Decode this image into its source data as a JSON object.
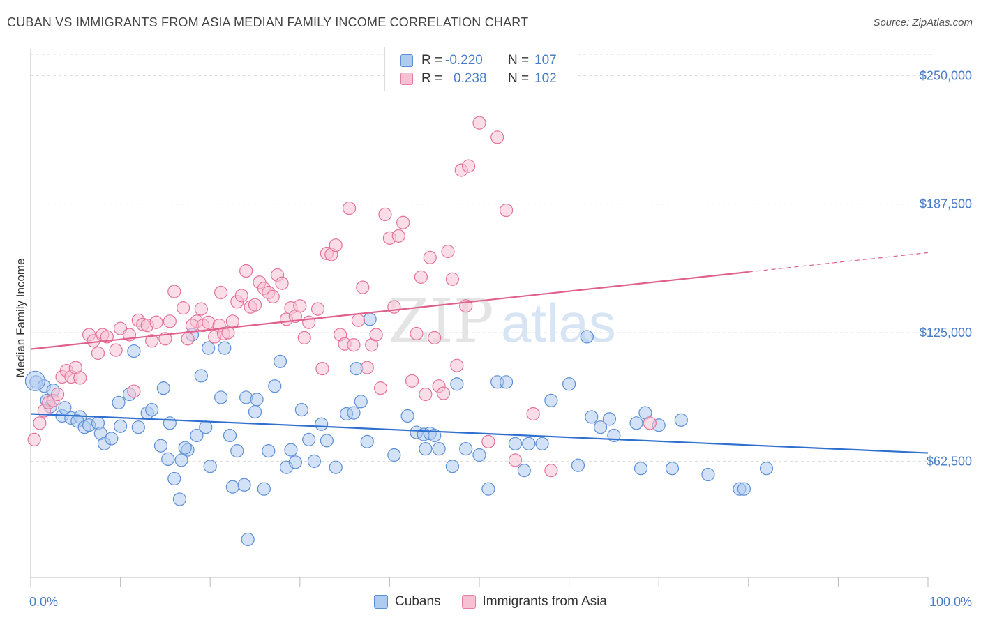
{
  "title": "CUBAN VS IMMIGRANTS FROM ASIA MEDIAN FAMILY INCOME CORRELATION CHART",
  "source": "Source: ZipAtlas.com",
  "watermark": {
    "zip": "ZIP",
    "atlas": "atlas"
  },
  "legend": {
    "rows": [
      {
        "r_label": "R =",
        "r_value": "-0.220",
        "n_label": "N =",
        "n_value": "107",
        "fill": "#aecbf0",
        "stroke": "#5b8fd6"
      },
      {
        "r_label": "R =",
        "r_value": "0.238",
        "n_label": "N =",
        "n_value": "102",
        "fill": "#f8c1d3",
        "stroke": "#e47fa2"
      }
    ]
  },
  "bottom_legend": [
    {
      "label": "Cubans",
      "fill": "#aecbf0",
      "stroke": "#5b8fd6"
    },
    {
      "label": "Immigrants from Asia",
      "fill": "#f8c1d3",
      "stroke": "#e47fa2"
    }
  ],
  "chart_data": {
    "type": "scatter",
    "title": "CUBAN VS IMMIGRANTS FROM ASIA MEDIAN FAMILY INCOME CORRELATION CHART",
    "xlabel": "",
    "ylabel": "Median Family Income",
    "xlim": [
      0,
      100
    ],
    "ylim": [
      6000,
      263000
    ],
    "x_tick_labels": [
      "0.0%",
      "100.0%"
    ],
    "y_ticks": [
      62500,
      125000,
      187500,
      250000
    ],
    "y_tick_labels": [
      "$62,500",
      "$125,000",
      "$187,500",
      "$250,000"
    ],
    "grid": true,
    "legend_position": "top-center",
    "series": [
      {
        "name": "Cubans",
        "color": "#5b8fd6",
        "fill": "#aecbf0",
        "trend": {
          "x0": 0,
          "y0": 85500,
          "x1": 100,
          "y1": 66500
        },
        "points": [
          [
            0.6,
            101000
          ],
          [
            1.5,
            99000
          ],
          [
            2.5,
            97000
          ],
          [
            1.8,
            92000
          ],
          [
            2.2,
            89000
          ],
          [
            3.5,
            84500
          ],
          [
            4.5,
            83500
          ],
          [
            3.8,
            88500
          ],
          [
            5.5,
            84000
          ],
          [
            5.2,
            82000
          ],
          [
            6.0,
            79000
          ],
          [
            6.5,
            80000
          ],
          [
            7.5,
            81000
          ],
          [
            7.8,
            76000
          ],
          [
            8.2,
            71000
          ],
          [
            9.0,
            73500
          ],
          [
            9.8,
            91000
          ],
          [
            10.0,
            79500
          ],
          [
            11.0,
            95000
          ],
          [
            11.5,
            116000
          ],
          [
            12.0,
            79000
          ],
          [
            13.0,
            86000
          ],
          [
            13.5,
            87500
          ],
          [
            14.5,
            70000
          ],
          [
            14.8,
            98000
          ],
          [
            15.5,
            81000
          ],
          [
            15.3,
            63500
          ],
          [
            16.0,
            54000
          ],
          [
            16.8,
            63000
          ],
          [
            16.6,
            44000
          ],
          [
            17.5,
            68000
          ],
          [
            17.2,
            69000
          ],
          [
            18.0,
            124000
          ],
          [
            18.5,
            75000
          ],
          [
            19.0,
            104000
          ],
          [
            19.5,
            79000
          ],
          [
            19.8,
            117500
          ],
          [
            20.0,
            60000
          ],
          [
            21.2,
            93500
          ],
          [
            21.6,
            117500
          ],
          [
            22.2,
            75000
          ],
          [
            22.5,
            50000
          ],
          [
            23.0,
            67500
          ],
          [
            23.8,
            51000
          ],
          [
            24.0,
            93500
          ],
          [
            24.2,
            24500
          ],
          [
            25.0,
            86500
          ],
          [
            25.2,
            92500
          ],
          [
            26.0,
            49000
          ],
          [
            26.5,
            67500
          ],
          [
            27.2,
            99000
          ],
          [
            27.8,
            111000
          ],
          [
            28.5,
            59500
          ],
          [
            29.0,
            68000
          ],
          [
            29.5,
            62000
          ],
          [
            30.2,
            87500
          ],
          [
            31.0,
            73000
          ],
          [
            31.6,
            62500
          ],
          [
            32.4,
            80500
          ],
          [
            33.0,
            72500
          ],
          [
            34.0,
            59500
          ],
          [
            35.2,
            85500
          ],
          [
            36.0,
            86000
          ],
          [
            36.3,
            107500
          ],
          [
            36.8,
            91500
          ],
          [
            37.5,
            72000
          ],
          [
            37.8,
            131500
          ],
          [
            40.5,
            65500
          ],
          [
            42.0,
            84500
          ],
          [
            43.0,
            76500
          ],
          [
            43.8,
            75500
          ],
          [
            44.5,
            76000
          ],
          [
            45.0,
            75000
          ],
          [
            44.0,
            68500
          ],
          [
            45.5,
            68500
          ],
          [
            47.0,
            60000
          ],
          [
            47.5,
            100000
          ],
          [
            48.5,
            68500
          ],
          [
            50.0,
            65500
          ],
          [
            51.0,
            49000
          ],
          [
            52.0,
            101000
          ],
          [
            53.0,
            101000
          ],
          [
            54.0,
            71000
          ],
          [
            55.0,
            58000
          ],
          [
            55.5,
            71000
          ],
          [
            57.0,
            71000
          ],
          [
            58.0,
            92000
          ],
          [
            60.0,
            100000
          ],
          [
            61.0,
            60500
          ],
          [
            62.0,
            123000
          ],
          [
            62.5,
            84000
          ],
          [
            63.5,
            79000
          ],
          [
            64.5,
            83000
          ],
          [
            65.0,
            75000
          ],
          [
            67.5,
            81000
          ],
          [
            68.0,
            59000
          ],
          [
            68.5,
            86000
          ],
          [
            70.0,
            80000
          ],
          [
            71.5,
            59000
          ],
          [
            72.5,
            82500
          ],
          [
            75.5,
            56000
          ],
          [
            79.0,
            49000
          ],
          [
            79.5,
            49000
          ],
          [
            82.0,
            59000
          ]
        ]
      },
      {
        "name": "Immigrants from Asia",
        "color": "#e4729a",
        "fill": "#f8c1d3",
        "trend": {
          "x0": 0,
          "y0": 117000,
          "x1": 80,
          "y1": 154500,
          "dash_x1": 100
        },
        "points": [
          [
            0.4,
            73000
          ],
          [
            1.0,
            81000
          ],
          [
            1.5,
            87000
          ],
          [
            2.0,
            91000
          ],
          [
            2.5,
            92000
          ],
          [
            3.0,
            95000
          ],
          [
            3.5,
            103500
          ],
          [
            4.0,
            106500
          ],
          [
            4.5,
            103500
          ],
          [
            5.0,
            108000
          ],
          [
            5.5,
            103000
          ],
          [
            6.5,
            124000
          ],
          [
            7.0,
            121000
          ],
          [
            7.5,
            115000
          ],
          [
            8.0,
            124000
          ],
          [
            8.5,
            123000
          ],
          [
            9.5,
            116500
          ],
          [
            10.0,
            127000
          ],
          [
            11.0,
            124000
          ],
          [
            11.5,
            96500
          ],
          [
            12.0,
            131000
          ],
          [
            12.5,
            129000
          ],
          [
            13.0,
            128500
          ],
          [
            13.5,
            121000
          ],
          [
            14.0,
            130000
          ],
          [
            15.0,
            122000
          ],
          [
            15.5,
            130500
          ],
          [
            16.0,
            145000
          ],
          [
            17.0,
            137000
          ],
          [
            17.5,
            122000
          ],
          [
            18.5,
            130500
          ],
          [
            18.0,
            128500
          ],
          [
            19.0,
            136500
          ],
          [
            19.2,
            128500
          ],
          [
            19.8,
            130000
          ],
          [
            20.5,
            123000
          ],
          [
            21.0,
            128500
          ],
          [
            21.5,
            124500
          ],
          [
            22.0,
            125000
          ],
          [
            21.2,
            144500
          ],
          [
            22.5,
            130500
          ],
          [
            23.0,
            140000
          ],
          [
            23.5,
            143000
          ],
          [
            24.0,
            155000
          ],
          [
            24.5,
            137500
          ],
          [
            25.0,
            138500
          ],
          [
            25.5,
            149500
          ],
          [
            26.0,
            146500
          ],
          [
            26.5,
            144500
          ],
          [
            27.0,
            142500
          ],
          [
            27.5,
            153000
          ],
          [
            28.0,
            149000
          ],
          [
            28.5,
            131500
          ],
          [
            29.0,
            137000
          ],
          [
            29.5,
            133000
          ],
          [
            30.0,
            138000
          ],
          [
            30.5,
            122500
          ],
          [
            31.0,
            130000
          ],
          [
            32.0,
            136500
          ],
          [
            32.5,
            107500
          ],
          [
            33.0,
            163500
          ],
          [
            33.5,
            163000
          ],
          [
            34.0,
            167500
          ],
          [
            34.5,
            124000
          ],
          [
            35.0,
            119500
          ],
          [
            35.5,
            185500
          ],
          [
            36.0,
            119000
          ],
          [
            36.5,
            131000
          ],
          [
            37.0,
            147000
          ],
          [
            37.5,
            108000
          ],
          [
            38.0,
            119000
          ],
          [
            38.5,
            124000
          ],
          [
            39.0,
            98000
          ],
          [
            39.5,
            182500
          ],
          [
            40.0,
            171000
          ],
          [
            40.5,
            137500
          ],
          [
            41.0,
            172000
          ],
          [
            41.5,
            178500
          ],
          [
            42.5,
            101500
          ],
          [
            43.0,
            124500
          ],
          [
            43.5,
            152000
          ],
          [
            44.0,
            95000
          ],
          [
            44.5,
            161500
          ],
          [
            45.0,
            122500
          ],
          [
            45.5,
            99000
          ],
          [
            46.0,
            95500
          ],
          [
            46.5,
            164500
          ],
          [
            47.0,
            151000
          ],
          [
            47.5,
            109000
          ],
          [
            48.0,
            204000
          ],
          [
            48.5,
            138000
          ],
          [
            48.8,
            206000
          ],
          [
            50.0,
            227000
          ],
          [
            51.0,
            72000
          ],
          [
            52.0,
            220000
          ],
          [
            53.0,
            184500
          ],
          [
            54.0,
            63000
          ],
          [
            56.0,
            85500
          ],
          [
            58.0,
            58000
          ],
          [
            69.0,
            81000
          ]
        ]
      }
    ]
  }
}
